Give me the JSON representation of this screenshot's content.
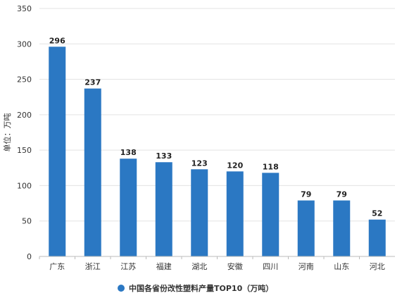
{
  "chart_data": {
    "type": "bar",
    "categories": [
      "广东",
      "浙江",
      "江苏",
      "福建",
      "湖北",
      "安徽",
      "四川",
      "河南",
      "山东",
      "河北"
    ],
    "series": [
      {
        "name": "中国各省份改性塑料产量TOP10（万吨）",
        "values": [
          296,
          237,
          138,
          133,
          123,
          120,
          118,
          79,
          79,
          52
        ]
      }
    ],
    "data_labels": [
      "296",
      "237",
      "138",
      "133",
      "123",
      "120",
      "118",
      "79",
      "79",
      "52"
    ],
    "ylabel": "单位：万吨",
    "xlabel": "",
    "ylim": [
      0,
      350
    ],
    "yticks": [
      0,
      50,
      100,
      150,
      200,
      250,
      300,
      350
    ],
    "grid": true,
    "legend_position": "bottom",
    "bar_color": "#2b78c3"
  }
}
